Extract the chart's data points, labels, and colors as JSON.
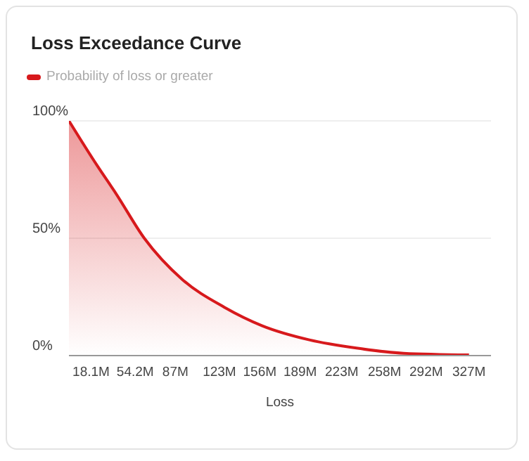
{
  "chart_data": {
    "type": "area",
    "title": "Loss Exceedance Curve",
    "xlabel": "Loss",
    "x": [
      0,
      23,
      38.5,
      61.6,
      92.5,
      127,
      158,
      196.5,
      235,
      273.6,
      327
    ],
    "series": [
      {
        "name": "Probability of loss or greater",
        "color": "#d7191c",
        "values": [
          100,
          81,
          69,
          50,
          32.5,
          20.6,
          12.7,
          6.7,
          3.2,
          1,
          0.3
        ]
      }
    ],
    "xlim": [
      0,
      345
    ],
    "xticks": [
      {
        "value": 18.1,
        "label": "18.1M"
      },
      {
        "value": 54.2,
        "label": "54.2M"
      },
      {
        "value": 87,
        "label": "87M"
      },
      {
        "value": 123,
        "label": "123M"
      },
      {
        "value": 156,
        "label": "156M"
      },
      {
        "value": 189,
        "label": "189M"
      },
      {
        "value": 223,
        "label": "223M"
      },
      {
        "value": 258,
        "label": "258M"
      },
      {
        "value": 292,
        "label": "292M"
      },
      {
        "value": 327,
        "label": "327M"
      }
    ],
    "ylim": [
      0,
      100
    ],
    "yticks": [
      {
        "value": 0,
        "label": "0%"
      },
      {
        "value": 50,
        "label": "50%"
      },
      {
        "value": 100,
        "label": "100%"
      }
    ],
    "grid": "y",
    "legend": "top left",
    "marker": "none",
    "line_style": "solid"
  }
}
